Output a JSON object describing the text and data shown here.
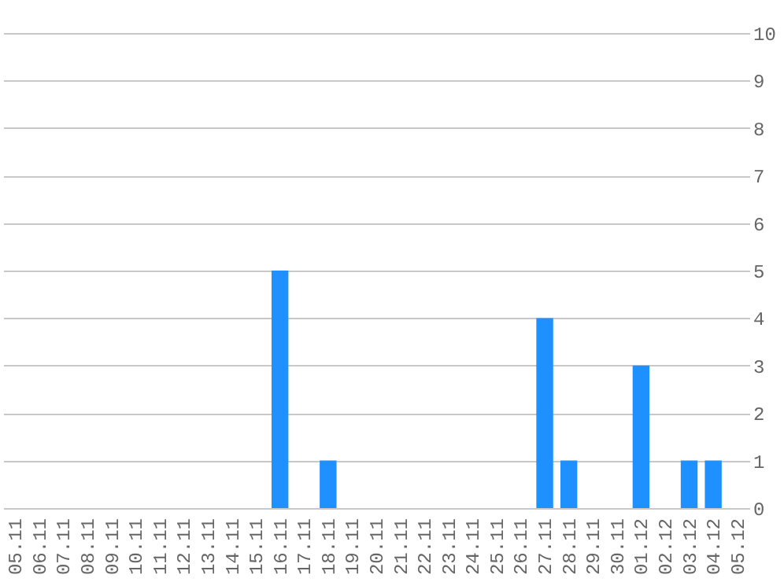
{
  "chart_data": {
    "type": "bar",
    "categories": [
      "05.11",
      "06.11",
      "07.11",
      "08.11",
      "09.11",
      "10.11",
      "11.11",
      "12.11",
      "13.11",
      "14.11",
      "15.11",
      "16.11",
      "17.11",
      "18.11",
      "19.11",
      "20.11",
      "21.11",
      "22.11",
      "23.11",
      "24.11",
      "25.11",
      "26.11",
      "27.11",
      "28.11",
      "29.11",
      "30.11",
      "01.12",
      "02.12",
      "03.12",
      "04.12",
      "05.12"
    ],
    "values": [
      0,
      0,
      0,
      0,
      0,
      0,
      0,
      0,
      0,
      0,
      0,
      5,
      0,
      1,
      0,
      0,
      0,
      0,
      0,
      0,
      0,
      0,
      4,
      1,
      0,
      0,
      3,
      0,
      1,
      1,
      0
    ],
    "color": "#1e90ff",
    "ylim": [
      0,
      10
    ],
    "yticks": [
      0,
      1,
      2,
      3,
      4,
      5,
      6,
      7,
      8,
      9,
      10
    ],
    "grid": "y"
  }
}
